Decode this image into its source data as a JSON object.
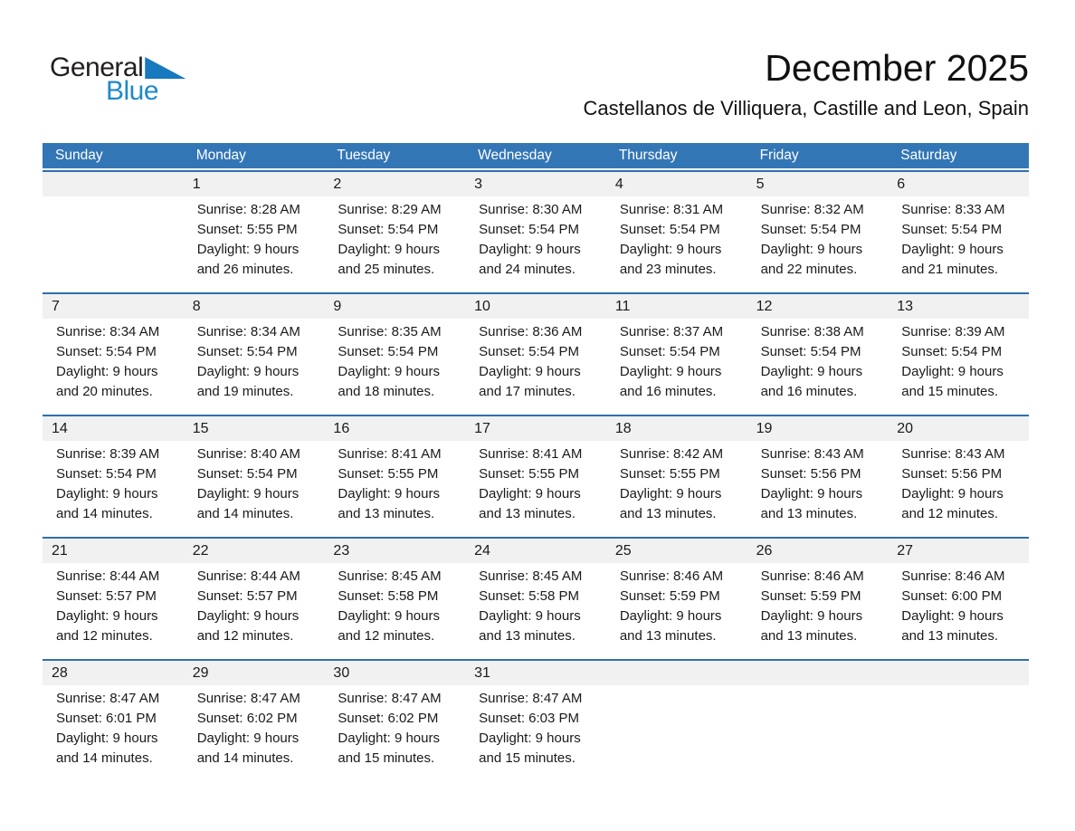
{
  "logo": {
    "text_general": "General",
    "text_blue": "Blue"
  },
  "header": {
    "title": "December 2025",
    "location": "Castellanos de Villiquera, Castille and Leon, Spain"
  },
  "colors": {
    "header_bg": "#3376b5",
    "separator": "#2e6fae",
    "band_bg": "#f1f1f1",
    "logo_black": "#231f20",
    "logo_blue": "#2089ca",
    "logo_triangle": "#1779be"
  },
  "weekdays": [
    "Sunday",
    "Monday",
    "Tuesday",
    "Wednesday",
    "Thursday",
    "Friday",
    "Saturday"
  ],
  "weeks": [
    [
      null,
      {
        "day": "1",
        "sunrise": "Sunrise: 8:28 AM",
        "sunset": "Sunset: 5:55 PM",
        "daylight_line1": "Daylight: 9 hours",
        "daylight_line2": "and 26 minutes."
      },
      {
        "day": "2",
        "sunrise": "Sunrise: 8:29 AM",
        "sunset": "Sunset: 5:54 PM",
        "daylight_line1": "Daylight: 9 hours",
        "daylight_line2": "and 25 minutes."
      },
      {
        "day": "3",
        "sunrise": "Sunrise: 8:30 AM",
        "sunset": "Sunset: 5:54 PM",
        "daylight_line1": "Daylight: 9 hours",
        "daylight_line2": "and 24 minutes."
      },
      {
        "day": "4",
        "sunrise": "Sunrise: 8:31 AM",
        "sunset": "Sunset: 5:54 PM",
        "daylight_line1": "Daylight: 9 hours",
        "daylight_line2": "and 23 minutes."
      },
      {
        "day": "5",
        "sunrise": "Sunrise: 8:32 AM",
        "sunset": "Sunset: 5:54 PM",
        "daylight_line1": "Daylight: 9 hours",
        "daylight_line2": "and 22 minutes."
      },
      {
        "day": "6",
        "sunrise": "Sunrise: 8:33 AM",
        "sunset": "Sunset: 5:54 PM",
        "daylight_line1": "Daylight: 9 hours",
        "daylight_line2": "and 21 minutes."
      }
    ],
    [
      {
        "day": "7",
        "sunrise": "Sunrise: 8:34 AM",
        "sunset": "Sunset: 5:54 PM",
        "daylight_line1": "Daylight: 9 hours",
        "daylight_line2": "and 20 minutes."
      },
      {
        "day": "8",
        "sunrise": "Sunrise: 8:34 AM",
        "sunset": "Sunset: 5:54 PM",
        "daylight_line1": "Daylight: 9 hours",
        "daylight_line2": "and 19 minutes."
      },
      {
        "day": "9",
        "sunrise": "Sunrise: 8:35 AM",
        "sunset": "Sunset: 5:54 PM",
        "daylight_line1": "Daylight: 9 hours",
        "daylight_line2": "and 18 minutes."
      },
      {
        "day": "10",
        "sunrise": "Sunrise: 8:36 AM",
        "sunset": "Sunset: 5:54 PM",
        "daylight_line1": "Daylight: 9 hours",
        "daylight_line2": "and 17 minutes."
      },
      {
        "day": "11",
        "sunrise": "Sunrise: 8:37 AM",
        "sunset": "Sunset: 5:54 PM",
        "daylight_line1": "Daylight: 9 hours",
        "daylight_line2": "and 16 minutes."
      },
      {
        "day": "12",
        "sunrise": "Sunrise: 8:38 AM",
        "sunset": "Sunset: 5:54 PM",
        "daylight_line1": "Daylight: 9 hours",
        "daylight_line2": "and 16 minutes."
      },
      {
        "day": "13",
        "sunrise": "Sunrise: 8:39 AM",
        "sunset": "Sunset: 5:54 PM",
        "daylight_line1": "Daylight: 9 hours",
        "daylight_line2": "and 15 minutes."
      }
    ],
    [
      {
        "day": "14",
        "sunrise": "Sunrise: 8:39 AM",
        "sunset": "Sunset: 5:54 PM",
        "daylight_line1": "Daylight: 9 hours",
        "daylight_line2": "and 14 minutes."
      },
      {
        "day": "15",
        "sunrise": "Sunrise: 8:40 AM",
        "sunset": "Sunset: 5:54 PM",
        "daylight_line1": "Daylight: 9 hours",
        "daylight_line2": "and 14 minutes."
      },
      {
        "day": "16",
        "sunrise": "Sunrise: 8:41 AM",
        "sunset": "Sunset: 5:55 PM",
        "daylight_line1": "Daylight: 9 hours",
        "daylight_line2": "and 13 minutes."
      },
      {
        "day": "17",
        "sunrise": "Sunrise: 8:41 AM",
        "sunset": "Sunset: 5:55 PM",
        "daylight_line1": "Daylight: 9 hours",
        "daylight_line2": "and 13 minutes."
      },
      {
        "day": "18",
        "sunrise": "Sunrise: 8:42 AM",
        "sunset": "Sunset: 5:55 PM",
        "daylight_line1": "Daylight: 9 hours",
        "daylight_line2": "and 13 minutes."
      },
      {
        "day": "19",
        "sunrise": "Sunrise: 8:43 AM",
        "sunset": "Sunset: 5:56 PM",
        "daylight_line1": "Daylight: 9 hours",
        "daylight_line2": "and 13 minutes."
      },
      {
        "day": "20",
        "sunrise": "Sunrise: 8:43 AM",
        "sunset": "Sunset: 5:56 PM",
        "daylight_line1": "Daylight: 9 hours",
        "daylight_line2": "and 12 minutes."
      }
    ],
    [
      {
        "day": "21",
        "sunrise": "Sunrise: 8:44 AM",
        "sunset": "Sunset: 5:57 PM",
        "daylight_line1": "Daylight: 9 hours",
        "daylight_line2": "and 12 minutes."
      },
      {
        "day": "22",
        "sunrise": "Sunrise: 8:44 AM",
        "sunset": "Sunset: 5:57 PM",
        "daylight_line1": "Daylight: 9 hours",
        "daylight_line2": "and 12 minutes."
      },
      {
        "day": "23",
        "sunrise": "Sunrise: 8:45 AM",
        "sunset": "Sunset: 5:58 PM",
        "daylight_line1": "Daylight: 9 hours",
        "daylight_line2": "and 12 minutes."
      },
      {
        "day": "24",
        "sunrise": "Sunrise: 8:45 AM",
        "sunset": "Sunset: 5:58 PM",
        "daylight_line1": "Daylight: 9 hours",
        "daylight_line2": "and 13 minutes."
      },
      {
        "day": "25",
        "sunrise": "Sunrise: 8:46 AM",
        "sunset": "Sunset: 5:59 PM",
        "daylight_line1": "Daylight: 9 hours",
        "daylight_line2": "and 13 minutes."
      },
      {
        "day": "26",
        "sunrise": "Sunrise: 8:46 AM",
        "sunset": "Sunset: 5:59 PM",
        "daylight_line1": "Daylight: 9 hours",
        "daylight_line2": "and 13 minutes."
      },
      {
        "day": "27",
        "sunrise": "Sunrise: 8:46 AM",
        "sunset": "Sunset: 6:00 PM",
        "daylight_line1": "Daylight: 9 hours",
        "daylight_line2": "and 13 minutes."
      }
    ],
    [
      {
        "day": "28",
        "sunrise": "Sunrise: 8:47 AM",
        "sunset": "Sunset: 6:01 PM",
        "daylight_line1": "Daylight: 9 hours",
        "daylight_line2": "and 14 minutes."
      },
      {
        "day": "29",
        "sunrise": "Sunrise: 8:47 AM",
        "sunset": "Sunset: 6:02 PM",
        "daylight_line1": "Daylight: 9 hours",
        "daylight_line2": "and 14 minutes."
      },
      {
        "day": "30",
        "sunrise": "Sunrise: 8:47 AM",
        "sunset": "Sunset: 6:02 PM",
        "daylight_line1": "Daylight: 9 hours",
        "daylight_line2": "and 15 minutes."
      },
      {
        "day": "31",
        "sunrise": "Sunrise: 8:47 AM",
        "sunset": "Sunset: 6:03 PM",
        "daylight_line1": "Daylight: 9 hours",
        "daylight_line2": "and 15 minutes."
      },
      null,
      null,
      null
    ]
  ]
}
